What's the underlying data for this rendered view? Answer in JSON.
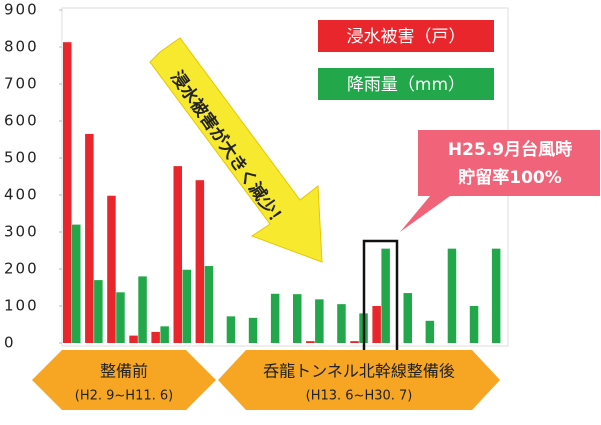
{
  "chart_data": {
    "type": "bar",
    "categories": [
      null,
      null,
      null,
      null,
      null,
      null,
      null,
      null,
      null,
      null,
      null,
      null,
      null,
      null,
      null,
      null,
      null,
      null,
      null,
      null
    ],
    "series": [
      {
        "name": "浸水被害（戸）",
        "color": "#e8262b",
        "values": [
          813,
          565,
          398,
          20,
          30,
          478,
          440,
          0,
          0,
          0,
          0,
          5,
          0,
          5,
          100,
          0,
          0,
          0,
          0,
          0
        ]
      },
      {
        "name": "降雨量（mm）",
        "color": "#22a84a",
        "values": [
          320,
          170,
          137,
          180,
          45,
          198,
          208,
          72,
          68,
          133,
          132,
          118,
          105,
          80,
          255,
          135,
          60,
          255,
          100,
          255
        ]
      }
    ],
    "ylim": [
      0,
      900
    ],
    "yticks": [
      0,
      100,
      200,
      300,
      400,
      500,
      600,
      700,
      800,
      900
    ],
    "annotations": {
      "arrow": "浸水被害が大きく減少！",
      "callout": [
        "H25.9月台風時",
        "貯留率100%"
      ],
      "before": [
        "整備前",
        "(H2. 9~H11. 6)"
      ],
      "after": [
        "呑龍トンネル北幹線整備後",
        "(H13. 6~H30. 7)"
      ]
    }
  }
}
